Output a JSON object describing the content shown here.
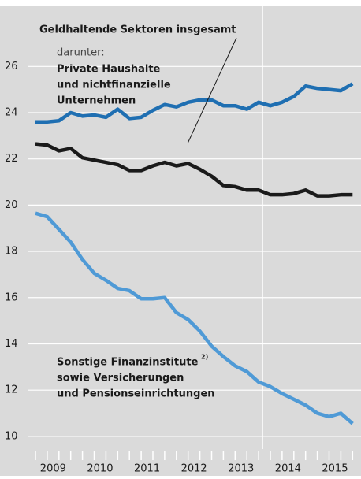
{
  "chart_data": {
    "type": "line",
    "categories": [
      null,
      null,
      null,
      null,
      null,
      null,
      null,
      null,
      null,
      null,
      null,
      null,
      null,
      null,
      null,
      null,
      null,
      null,
      null,
      null,
      null,
      null,
      null,
      null,
      null,
      null,
      null,
      null
    ],
    "year_labels": [
      "2009",
      "2010",
      "2011",
      "2012",
      "2013",
      "2014",
      "2015"
    ],
    "series": [
      {
        "color": "#1f6fb2",
        "values": [
          23.6,
          23.6,
          23.65,
          24.0,
          23.85,
          23.9,
          23.8,
          24.15,
          23.75,
          23.8,
          24.1,
          24.35,
          24.25,
          24.45,
          24.55,
          24.55,
          24.3,
          24.3,
          24.15,
          24.45,
          24.3,
          24.45,
          24.7,
          25.15,
          25.05,
          25.0,
          24.95,
          25.25
        ]
      },
      {
        "color": "#1a1a1a",
        "values": [
          22.65,
          22.6,
          22.35,
          22.45,
          22.05,
          21.95,
          21.85,
          21.75,
          21.5,
          21.5,
          21.7,
          21.85,
          21.7,
          21.8,
          21.55,
          21.25,
          20.85,
          20.8,
          20.65,
          20.65,
          20.45,
          20.45,
          20.5,
          20.65,
          20.4,
          20.4,
          20.45,
          20.45
        ]
      },
      {
        "color": "#4f9ad6",
        "values": [
          19.65,
          19.5,
          18.95,
          18.4,
          17.65,
          17.05,
          16.75,
          16.4,
          16.3,
          15.95,
          15.95,
          16.0,
          15.35,
          15.05,
          14.55,
          13.9,
          13.45,
          13.05,
          12.8,
          12.35,
          12.15,
          11.85,
          11.6,
          11.35,
          11.0,
          10.85,
          11.0,
          10.55
        ]
      }
    ],
    "ylim": [
      9.45,
      28.6
    ],
    "yticks": [
      10,
      12,
      14,
      16,
      18,
      20,
      22,
      24,
      26
    ],
    "grid": true,
    "annotations": {
      "total": "Geldhaltende Sektoren insgesamt",
      "darunter": "darunter:",
      "households": [
        "Private Haushalte",
        "und nichtfinanzielle",
        "Unternehmen"
      ],
      "other": [
        "Sonstige Finanzinstitute",
        "sowie Versicherungen",
        "und Pensionseinrichtungen"
      ],
      "other_note": "2)"
    }
  }
}
